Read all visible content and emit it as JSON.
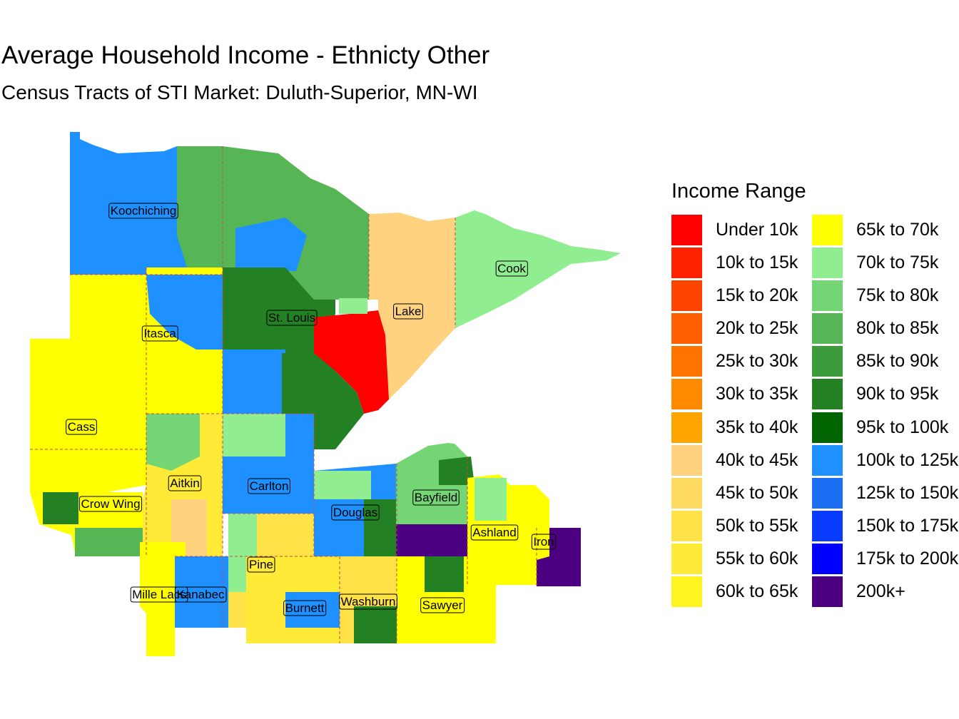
{
  "title": "Average Household Income - Ethnicty Other",
  "subtitle": "Census Tracts of STI Market: Duluth-Superior, MN-WI",
  "legend": {
    "title": "Income Range",
    "items": [
      {
        "label": "Under 10k",
        "color": "#FF0000"
      },
      {
        "label": "10k to 15k",
        "color": "#FF2200"
      },
      {
        "label": "15k to 20k",
        "color": "#FF4400"
      },
      {
        "label": "20k to 25k",
        "color": "#FF5F00"
      },
      {
        "label": "25k to 30k",
        "color": "#FF7300"
      },
      {
        "label": "30k to 35k",
        "color": "#FF8A00"
      },
      {
        "label": "35k to 40k",
        "color": "#FFA500"
      },
      {
        "label": "40k to 45k",
        "color": "#FFD280"
      },
      {
        "label": "45k to 50k",
        "color": "#FFDA60"
      },
      {
        "label": "50k to 55k",
        "color": "#FFE148"
      },
      {
        "label": "55k to 60k",
        "color": "#FFEA38"
      },
      {
        "label": "60k to 65k",
        "color": "#FFF320"
      },
      {
        "label": "65k to 70k",
        "color": "#FFFF00"
      },
      {
        "label": "70k to 75k",
        "color": "#90EE90"
      },
      {
        "label": "75k to 80k",
        "color": "#74D574"
      },
      {
        "label": "80k to 85k",
        "color": "#56B656"
      },
      {
        "label": "85k to 90k",
        "color": "#3C9C3C"
      },
      {
        "label": "90k to 95k",
        "color": "#238023"
      },
      {
        "label": "95k to 100k",
        "color": "#006400"
      },
      {
        "label": "100k to 125k",
        "color": "#1E90FF"
      },
      {
        "label": "125k to 150k",
        "color": "#1C6EF2"
      },
      {
        "label": "150k to 175k",
        "color": "#0A3CFF"
      },
      {
        "label": "175k to 200k",
        "color": "#0000FF"
      },
      {
        "label": "200k+",
        "color": "#4B0082"
      }
    ]
  },
  "counties": [
    "Koochiching",
    "Cook",
    "Lake",
    "St. Louis",
    "Itasca",
    "Cass",
    "Aitkin",
    "Carlton",
    "Crow Wing",
    "Bayfield",
    "Douglas",
    "Ashland",
    "Iron",
    "Pine",
    "Mille Lacs",
    "Kanabec",
    "Burnett",
    "Washburn",
    "Sawyer"
  ],
  "map": {
    "tract_fill_colors": {
      "koochiching": "#1E90FF",
      "north_st_louis": "#56B656",
      "lake": "#FFD280",
      "cook": "#90EE90",
      "itasca": "#FFFF00",
      "cass": "#FFFF00",
      "st_louis_central": "#238023",
      "st_louis_red": "#FF0000",
      "aitkin": "#FFEA38",
      "carlton": "#1E90FF",
      "douglas": "#1E90FF",
      "bayfield": "#74D574",
      "ashland": "#FFFF00",
      "iron": "#4B0082",
      "pine": "#FFE148",
      "kanabec": "#1E90FF",
      "burnett": "#FFEA38",
      "washburn": "#FFE148",
      "sawyer": "#FFFF00",
      "lake_superior": "#FFFFFF"
    }
  }
}
